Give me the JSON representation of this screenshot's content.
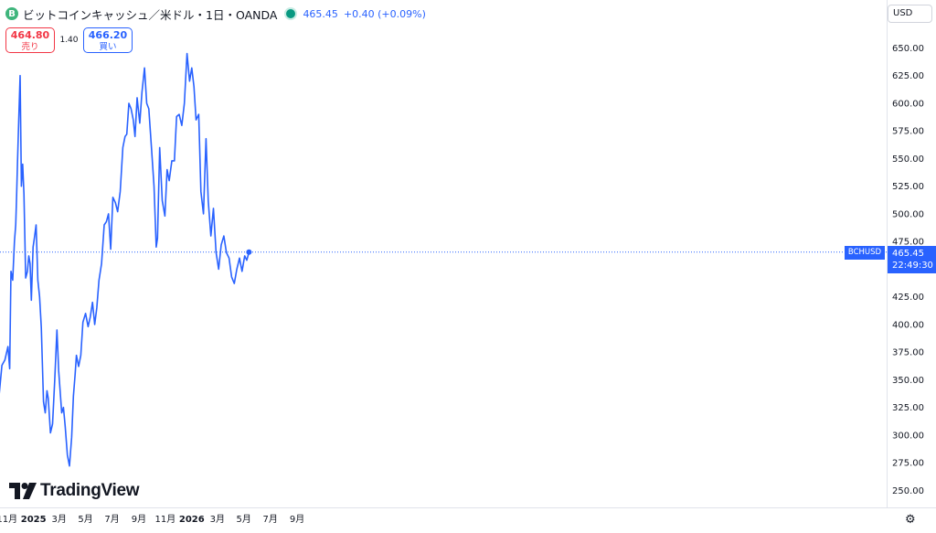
{
  "header": {
    "coin_glyph": "B",
    "title": "ビットコインキャッシュ／米ドル・1日・OANDA",
    "last_price": "465.45",
    "change": "+0.40 (+0.09%)"
  },
  "trade": {
    "sell_price": "464.80",
    "sell_label": "売り",
    "spread": "1.40",
    "buy_price": "466.20",
    "buy_label": "買い"
  },
  "currency_selector": "USD",
  "symbol_tag": "BCHUSD",
  "price_tag": {
    "price": "465.45",
    "countdown": "22:49:30"
  },
  "logo_text": "TradingView",
  "colors": {
    "line": "#2962ff",
    "sell": "#f23645",
    "buy": "#2962ff",
    "live_dot": "#089981"
  },
  "chart_data": {
    "type": "line",
    "symbol": "BCHUSD",
    "interval": "1日",
    "ylim": [
      237,
      665
    ],
    "y_ticks": [
      250,
      275,
      300,
      325,
      350,
      375,
      400,
      425,
      450,
      475,
      500,
      525,
      550,
      575,
      600,
      625,
      650
    ],
    "y_tick_labels": [
      "250.00",
      "275.00",
      "300.00",
      "325.00",
      "350.00",
      "375.00",
      "400.00",
      "425.00",
      "450.00",
      "475.00",
      "500.00",
      "525.00",
      "550.00",
      "575.00",
      "600.00",
      "625.00",
      "650.00"
    ],
    "x_tick_labels": [
      "11月",
      "2025",
      "3月",
      "5月",
      "7月",
      "9月",
      "11月",
      "2026",
      "3月",
      "5月",
      "7月",
      "9月"
    ],
    "x_tick_dates": [
      "2024-11-01",
      "2025-01-01",
      "2025-03-01",
      "2025-05-01",
      "2025-07-01",
      "2025-09-01",
      "2025-11-01",
      "2026-01-01",
      "2026-03-01",
      "2026-05-01",
      "2026-07-01",
      "2026-09-01"
    ],
    "current_price": 465.45,
    "series": [
      {
        "x": [
          "2024-10-06",
          "2024-10-13",
          "2024-10-20",
          "2024-10-27",
          "2024-11-03",
          "2024-11-07",
          "2024-11-10",
          "2024-11-14",
          "2024-11-18",
          "2024-11-21",
          "2024-11-23",
          "2024-11-25",
          "2024-11-28",
          "2024-12-01",
          "2024-12-04",
          "2024-12-07",
          "2024-12-10",
          "2024-12-14",
          "2024-12-18",
          "2024-12-21",
          "2024-12-24",
          "2024-12-27",
          "2024-12-31",
          "2025-01-03",
          "2025-01-07",
          "2025-01-11",
          "2025-01-15",
          "2025-01-19",
          "2025-01-24",
          "2025-01-28",
          "2025-02-01",
          "2025-02-04",
          "2025-02-09",
          "2025-02-14",
          "2025-02-19",
          "2025-02-24",
          "2025-02-28",
          "2025-03-03",
          "2025-03-07",
          "2025-03-11",
          "2025-03-15",
          "2025-03-20",
          "2025-03-25",
          "2025-03-30",
          "2025-04-03",
          "2025-04-07",
          "2025-04-10",
          "2025-04-15",
          "2025-04-20",
          "2025-04-25",
          "2025-05-01",
          "2025-05-07",
          "2025-05-12",
          "2025-05-17",
          "2025-05-22",
          "2025-05-27",
          "2025-06-01",
          "2025-06-07",
          "2025-06-13",
          "2025-06-18",
          "2025-06-23",
          "2025-06-28",
          "2025-07-03",
          "2025-07-09",
          "2025-07-14",
          "2025-07-20",
          "2025-07-26",
          "2025-07-31",
          "2025-08-04",
          "2025-08-09",
          "2025-08-14",
          "2025-08-19",
          "2025-08-23",
          "2025-08-28",
          "2025-09-03",
          "2025-09-08",
          "2025-09-14",
          "2025-09-19",
          "2025-09-24",
          "2025-09-30",
          "2025-10-06",
          "2025-10-11",
          "2025-10-14",
          "2025-10-19",
          "2025-10-25",
          "2025-10-31",
          "2025-11-05",
          "2025-11-10",
          "2025-11-16",
          "2025-11-22",
          "2025-11-27",
          "2025-12-03",
          "2025-12-09",
          "2025-12-15",
          "2025-12-21",
          "2025-12-27",
          "2026-01-01",
          "2026-01-06",
          "2026-01-11",
          "2026-01-17",
          "2026-01-22",
          "2026-01-28",
          "2026-02-03",
          "2026-02-08",
          "2026-02-14",
          "2026-02-20",
          "2026-02-26",
          "2026-03-04",
          "2026-03-10",
          "2026-03-16",
          "2026-03-22",
          "2026-03-28",
          "2026-04-03",
          "2026-04-09",
          "2026-04-15",
          "2026-04-21",
          "2026-04-27",
          "2026-05-03",
          "2026-05-08",
          "2026-05-13"
        ],
        "y": [
          320,
          333,
          363,
          368,
          380,
          360,
          448,
          440,
          475,
          490,
          517,
          545,
          585,
          625,
          525,
          545,
          518,
          442,
          448,
          462,
          455,
          422,
          470,
          478,
          490,
          440,
          425,
          397,
          330,
          320,
          340,
          333,
          302,
          310,
          350,
          395,
          358,
          342,
          320,
          325,
          308,
          282,
          272,
          298,
          335,
          355,
          372,
          362,
          372,
          402,
          410,
          398,
          407,
          420,
          400,
          415,
          440,
          455,
          490,
          493,
          500,
          468,
          515,
          510,
          502,
          520,
          560,
          570,
          572,
          600,
          595,
          585,
          570,
          605,
          582,
          610,
          632,
          600,
          595,
          560,
          525,
          470,
          478,
          560,
          512,
          498,
          540,
          530,
          548,
          548,
          588,
          590,
          580,
          600,
          645,
          620,
          632,
          615,
          585,
          590,
          520,
          500,
          568,
          512,
          480,
          505,
          465,
          450,
          472,
          480,
          465,
          460,
          443,
          437,
          450,
          460,
          448,
          462,
          458,
          465.45
        ]
      }
    ]
  }
}
